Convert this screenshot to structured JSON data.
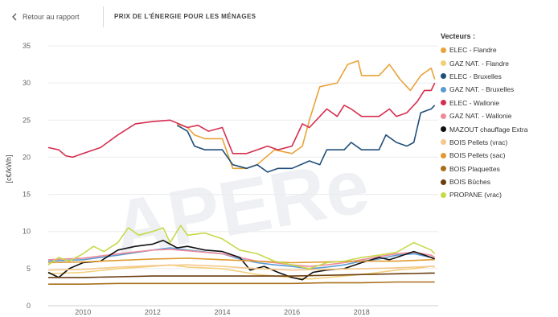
{
  "header": {
    "back_label": "Retour au rapport",
    "title": "PRIX DE L'ÉNERGIE POUR LES MÉNAGES"
  },
  "icons": {
    "back": "chevron-left-icon"
  },
  "chart_data": {
    "type": "line",
    "title": "PRIX DE L'ÉNERGIE POUR LES MÉNAGES",
    "xlabel": "",
    "ylabel": "[c€/kWh]",
    "xlim": [
      2009.0,
      2020.2
    ],
    "ylim": [
      0,
      35
    ],
    "xticks": [
      "2010",
      "2012",
      "2014",
      "2016",
      "2018"
    ],
    "xtick_values": [
      2010,
      2012,
      2014,
      2016,
      2018
    ],
    "yticks": [
      0,
      5,
      10,
      15,
      20,
      25,
      30,
      35
    ],
    "grid": "horizontal",
    "legend_title": "Vecteurs :",
    "legend_position": "right",
    "watermark": "APERe",
    "series": [
      {
        "name": "ELEC - Flandre",
        "color": "#e8a33a",
        "points": [
          [
            2012.7,
            24.5
          ],
          [
            2013.0,
            24.0
          ],
          [
            2013.2,
            23.0
          ],
          [
            2013.5,
            22.5
          ],
          [
            2014.0,
            22.5
          ],
          [
            2014.3,
            18.5
          ],
          [
            2014.7,
            18.5
          ],
          [
            2015.0,
            19.0
          ],
          [
            2015.5,
            21.0
          ],
          [
            2016.0,
            20.5
          ],
          [
            2016.3,
            21.5
          ],
          [
            2016.5,
            25.0
          ],
          [
            2016.8,
            29.5
          ],
          [
            2017.3,
            30.0
          ],
          [
            2017.6,
            32.5
          ],
          [
            2017.9,
            33.0
          ],
          [
            2018.0,
            31.0
          ],
          [
            2018.5,
            31.0
          ],
          [
            2018.8,
            32.5
          ],
          [
            2019.1,
            30.5
          ],
          [
            2019.4,
            29.0
          ],
          [
            2019.7,
            31.0
          ],
          [
            2020.0,
            32.0
          ],
          [
            2020.1,
            30.5
          ]
        ]
      },
      {
        "name": "GAZ NAT. - Flandre",
        "color": "#f3cf7a",
        "points": [
          [
            2009.0,
            4.3
          ],
          [
            2010.0,
            4.5
          ],
          [
            2011.0,
            5.0
          ],
          [
            2012.0,
            5.3
          ],
          [
            2012.5,
            5.5
          ],
          [
            2013.0,
            5.2
          ],
          [
            2014.0,
            5.0
          ],
          [
            2014.5,
            4.6
          ],
          [
            2015.0,
            4.2
          ],
          [
            2015.5,
            4.0
          ],
          [
            2016.0,
            3.8
          ],
          [
            2016.5,
            3.6
          ],
          [
            2017.0,
            3.8
          ],
          [
            2017.5,
            4.0
          ],
          [
            2018.0,
            4.2
          ],
          [
            2018.5,
            4.5
          ],
          [
            2019.0,
            4.8
          ],
          [
            2019.5,
            5.0
          ],
          [
            2020.0,
            5.3
          ],
          [
            2020.1,
            5.2
          ]
        ]
      },
      {
        "name": "ELEC - Bruxelles",
        "color": "#1f4e79",
        "points": [
          [
            2012.7,
            24.3
          ],
          [
            2013.0,
            23.5
          ],
          [
            2013.2,
            21.5
          ],
          [
            2013.5,
            21.0
          ],
          [
            2014.0,
            21.0
          ],
          [
            2014.3,
            19.0
          ],
          [
            2014.7,
            18.5
          ],
          [
            2015.0,
            19.0
          ],
          [
            2015.3,
            18.0
          ],
          [
            2015.6,
            18.5
          ],
          [
            2016.0,
            18.5
          ],
          [
            2016.5,
            19.5
          ],
          [
            2016.8,
            19.0
          ],
          [
            2017.0,
            21.0
          ],
          [
            2017.5,
            21.0
          ],
          [
            2017.7,
            22.0
          ],
          [
            2018.0,
            21.0
          ],
          [
            2018.5,
            21.0
          ],
          [
            2018.7,
            23.0
          ],
          [
            2019.0,
            22.0
          ],
          [
            2019.3,
            21.5
          ],
          [
            2019.5,
            22.0
          ],
          [
            2019.7,
            26.0
          ],
          [
            2020.0,
            26.5
          ],
          [
            2020.1,
            27.0
          ]
        ]
      },
      {
        "name": "GAZ NAT. - Bruxelles",
        "color": "#5a9bd4",
        "points": [
          [
            2009.0,
            6.0
          ],
          [
            2010.0,
            6.2
          ],
          [
            2011.0,
            6.8
          ],
          [
            2012.0,
            7.5
          ],
          [
            2012.5,
            7.8
          ],
          [
            2013.0,
            7.5
          ],
          [
            2014.0,
            7.0
          ],
          [
            2014.5,
            6.3
          ],
          [
            2015.0,
            5.8
          ],
          [
            2015.5,
            5.5
          ],
          [
            2016.0,
            5.3
          ],
          [
            2016.5,
            5.0
          ],
          [
            2017.0,
            5.2
          ],
          [
            2017.5,
            5.5
          ],
          [
            2018.0,
            6.0
          ],
          [
            2018.5,
            6.3
          ],
          [
            2019.0,
            6.8
          ],
          [
            2019.5,
            7.0
          ],
          [
            2020.0,
            6.5
          ],
          [
            2020.1,
            6.2
          ]
        ]
      },
      {
        "name": "ELEC - Wallonie",
        "color": "#d62e4f",
        "points": [
          [
            2009.0,
            21.3
          ],
          [
            2009.3,
            21.0
          ],
          [
            2009.5,
            20.2
          ],
          [
            2009.7,
            20.0
          ],
          [
            2010.0,
            20.5
          ],
          [
            2010.5,
            21.3
          ],
          [
            2011.0,
            23.0
          ],
          [
            2011.5,
            24.5
          ],
          [
            2012.0,
            24.8
          ],
          [
            2012.5,
            25.0
          ],
          [
            2013.0,
            24.0
          ],
          [
            2013.3,
            24.3
          ],
          [
            2013.6,
            23.5
          ],
          [
            2014.0,
            24.0
          ],
          [
            2014.3,
            20.5
          ],
          [
            2014.7,
            20.5
          ],
          [
            2015.0,
            21.0
          ],
          [
            2015.3,
            21.5
          ],
          [
            2015.6,
            21.0
          ],
          [
            2016.0,
            21.5
          ],
          [
            2016.3,
            24.5
          ],
          [
            2016.5,
            24.0
          ],
          [
            2016.8,
            25.5
          ],
          [
            2017.0,
            26.5
          ],
          [
            2017.3,
            25.5
          ],
          [
            2017.5,
            27.0
          ],
          [
            2017.7,
            26.5
          ],
          [
            2018.0,
            25.5
          ],
          [
            2018.5,
            25.5
          ],
          [
            2018.8,
            26.5
          ],
          [
            2019.0,
            25.5
          ],
          [
            2019.3,
            26.0
          ],
          [
            2019.6,
            27.5
          ],
          [
            2019.8,
            29.0
          ],
          [
            2020.0,
            29.0
          ],
          [
            2020.1,
            30.0
          ]
        ]
      },
      {
        "name": "GAZ NAT. - Wallonie",
        "color": "#f08a9a",
        "points": [
          [
            2009.0,
            6.2
          ],
          [
            2010.0,
            6.4
          ],
          [
            2011.0,
            7.0
          ],
          [
            2012.0,
            7.5
          ],
          [
            2012.5,
            7.6
          ],
          [
            2013.0,
            7.4
          ],
          [
            2014.0,
            7.0
          ],
          [
            2014.5,
            6.5
          ],
          [
            2015.0,
            6.0
          ],
          [
            2015.5,
            5.8
          ],
          [
            2016.0,
            5.5
          ],
          [
            2016.5,
            5.3
          ],
          [
            2017.0,
            5.5
          ],
          [
            2017.5,
            5.8
          ],
          [
            2018.0,
            6.2
          ],
          [
            2018.5,
            6.6
          ],
          [
            2019.0,
            7.0
          ],
          [
            2019.5,
            7.2
          ],
          [
            2020.0,
            6.8
          ],
          [
            2020.1,
            6.5
          ]
        ]
      },
      {
        "name": "MAZOUT chauffage Extra",
        "color": "#111111",
        "points": [
          [
            2009.0,
            4.5
          ],
          [
            2009.3,
            3.8
          ],
          [
            2009.6,
            5.0
          ],
          [
            2010.0,
            5.8
          ],
          [
            2010.5,
            6.0
          ],
          [
            2011.0,
            7.5
          ],
          [
            2011.5,
            8.0
          ],
          [
            2012.0,
            8.3
          ],
          [
            2012.3,
            8.8
          ],
          [
            2012.7,
            7.8
          ],
          [
            2013.0,
            8.0
          ],
          [
            2013.5,
            7.5
          ],
          [
            2014.0,
            7.3
          ],
          [
            2014.5,
            6.5
          ],
          [
            2014.8,
            4.8
          ],
          [
            2015.2,
            5.3
          ],
          [
            2015.6,
            4.5
          ],
          [
            2016.0,
            3.8
          ],
          [
            2016.3,
            3.5
          ],
          [
            2016.6,
            4.5
          ],
          [
            2017.0,
            4.8
          ],
          [
            2017.5,
            5.0
          ],
          [
            2018.0,
            5.8
          ],
          [
            2018.5,
            6.5
          ],
          [
            2018.8,
            6.2
          ],
          [
            2019.0,
            6.5
          ],
          [
            2019.5,
            7.3
          ],
          [
            2020.0,
            6.5
          ],
          [
            2020.1,
            6.3
          ]
        ]
      },
      {
        "name": "BOIS Pellets (vrac)",
        "color": "#f5c88a",
        "points": [
          [
            2009.0,
            4.8
          ],
          [
            2010.0,
            4.9
          ],
          [
            2011.0,
            5.2
          ],
          [
            2012.0,
            5.4
          ],
          [
            2013.0,
            5.5
          ],
          [
            2014.0,
            5.3
          ],
          [
            2015.0,
            5.0
          ],
          [
            2016.0,
            4.8
          ],
          [
            2017.0,
            4.9
          ],
          [
            2018.0,
            5.0
          ],
          [
            2019.0,
            5.1
          ],
          [
            2020.0,
            5.3
          ],
          [
            2020.1,
            5.3
          ]
        ]
      },
      {
        "name": "BOIS Pellets (sac)",
        "color": "#e09a30",
        "points": [
          [
            2009.0,
            5.8
          ],
          [
            2010.0,
            5.9
          ],
          [
            2011.0,
            6.1
          ],
          [
            2012.0,
            6.3
          ],
          [
            2013.0,
            6.4
          ],
          [
            2014.0,
            6.2
          ],
          [
            2015.0,
            6.0
          ],
          [
            2016.0,
            5.8
          ],
          [
            2017.0,
            5.9
          ],
          [
            2018.0,
            6.0
          ],
          [
            2019.0,
            6.0
          ],
          [
            2020.0,
            6.2
          ],
          [
            2020.1,
            6.2
          ]
        ]
      },
      {
        "name": "BOIS Plaquettes",
        "color": "#a86f1c",
        "points": [
          [
            2009.0,
            2.9
          ],
          [
            2010.0,
            2.9
          ],
          [
            2011.0,
            3.0
          ],
          [
            2012.0,
            3.0
          ],
          [
            2013.0,
            3.0
          ],
          [
            2014.0,
            3.0
          ],
          [
            2015.0,
            3.0
          ],
          [
            2016.0,
            3.0
          ],
          [
            2017.0,
            3.1
          ],
          [
            2018.0,
            3.1
          ],
          [
            2019.0,
            3.2
          ],
          [
            2020.0,
            3.2
          ],
          [
            2020.1,
            3.2
          ]
        ]
      },
      {
        "name": "BOIS Bûches",
        "color": "#6b3e10",
        "points": [
          [
            2009.0,
            3.8
          ],
          [
            2010.0,
            3.8
          ],
          [
            2011.0,
            3.9
          ],
          [
            2012.0,
            4.0
          ],
          [
            2013.0,
            4.0
          ],
          [
            2014.0,
            4.0
          ],
          [
            2015.0,
            4.0
          ],
          [
            2016.0,
            4.0
          ],
          [
            2017.0,
            4.1
          ],
          [
            2018.0,
            4.2
          ],
          [
            2019.0,
            4.3
          ],
          [
            2020.0,
            4.4
          ],
          [
            2020.1,
            4.4
          ]
        ]
      },
      {
        "name": "PROPANE (vrac)",
        "color": "#c7d94a",
        "points": [
          [
            2009.0,
            5.5
          ],
          [
            2009.3,
            6.5
          ],
          [
            2009.6,
            6.0
          ],
          [
            2010.0,
            7.0
          ],
          [
            2010.3,
            8.0
          ],
          [
            2010.6,
            7.3
          ],
          [
            2011.0,
            8.5
          ],
          [
            2011.3,
            10.5
          ],
          [
            2011.6,
            9.5
          ],
          [
            2012.0,
            10.0
          ],
          [
            2012.3,
            10.5
          ],
          [
            2012.5,
            8.5
          ],
          [
            2012.8,
            10.8
          ],
          [
            2013.0,
            9.5
          ],
          [
            2013.5,
            9.8
          ],
          [
            2014.0,
            9.0
          ],
          [
            2014.5,
            7.5
          ],
          [
            2015.0,
            7.0
          ],
          [
            2015.5,
            6.0
          ],
          [
            2016.0,
            5.5
          ],
          [
            2016.5,
            5.0
          ],
          [
            2017.0,
            5.8
          ],
          [
            2017.5,
            6.0
          ],
          [
            2018.0,
            6.5
          ],
          [
            2018.5,
            6.8
          ],
          [
            2019.0,
            7.2
          ],
          [
            2019.5,
            8.5
          ],
          [
            2020.0,
            7.5
          ],
          [
            2020.1,
            7.0
          ]
        ]
      }
    ]
  }
}
